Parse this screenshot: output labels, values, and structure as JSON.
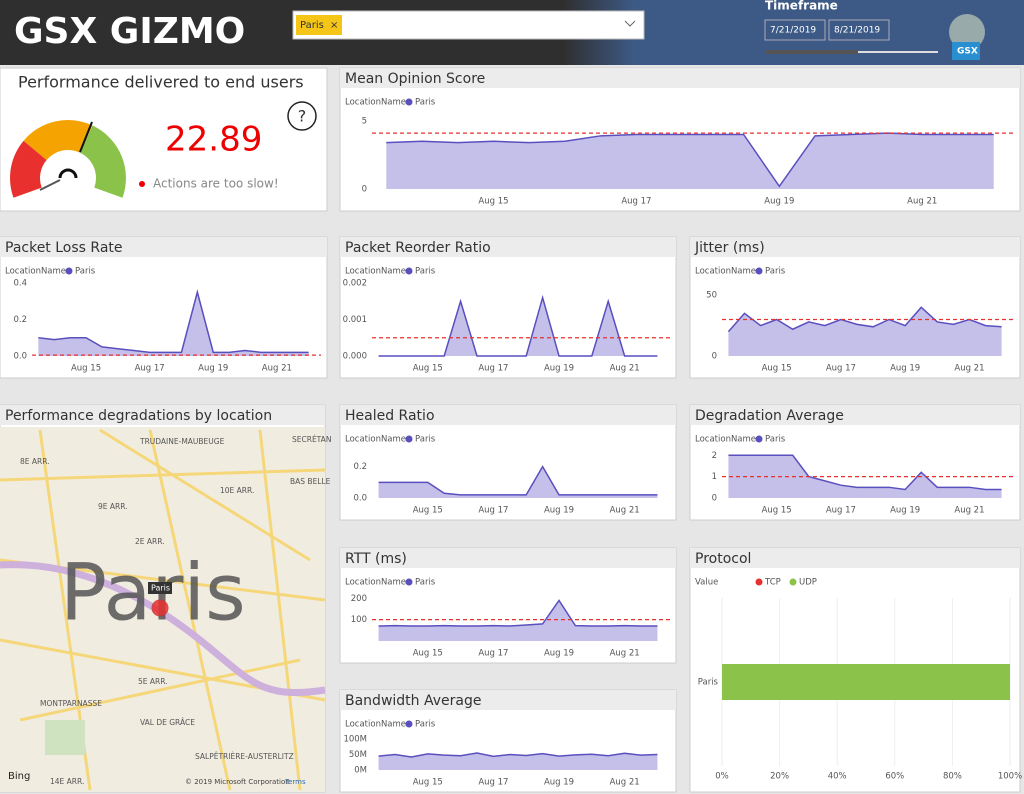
{
  "header": {
    "logo": "GSX GIZMO",
    "slicer_value": "Paris",
    "timeframe_label": "Timeframe",
    "date_from": "7/21/2019",
    "date_to": "8/21/2019",
    "badge": "GSX"
  },
  "performance": {
    "title": "Performance delivered to end users",
    "value": "22.89",
    "status": "Actions are too slow!",
    "help": "?"
  },
  "time_axis": {
    "x": [
      13.5,
      14,
      14.5,
      15,
      15.5,
      16,
      16.5,
      17,
      17.5,
      18,
      18.5,
      19,
      19.5,
      20,
      20.5,
      21,
      21.5,
      22
    ],
    "xlim": [
      13.3,
      22.2
    ],
    "xticks": [
      {
        "value": 15,
        "label": "Aug 15"
      },
      {
        "value": 17,
        "label": "Aug 17"
      },
      {
        "value": 19,
        "label": "Aug 19"
      },
      {
        "value": 21,
        "label": "Aug 21"
      }
    ]
  },
  "panels": {
    "mos": {
      "type": "area",
      "title": "Mean Opinion Score",
      "legend_title": "LocationName",
      "series_name": "Paris",
      "color": "#5a4fbf",
      "ylim": [
        0,
        5.5
      ],
      "yticks": [
        0,
        5
      ],
      "reference": 4.1,
      "values": [
        3.4,
        3.5,
        3.4,
        3.5,
        3.4,
        3.5,
        3.9,
        4.0,
        4.0,
        4.0,
        4.0,
        0.2,
        3.9,
        4.0,
        4.1,
        4.0,
        4.0,
        4.0
      ]
    },
    "packet_loss": {
      "type": "area",
      "title": "Packet Loss Rate",
      "legend_title": "LocationName",
      "series_name": "Paris",
      "color": "#5a4fbf",
      "ylim": [
        0,
        0.4
      ],
      "yticks": [
        {
          "value": 0,
          "label": "0.0"
        },
        0.2,
        0.4
      ],
      "reference": 0.005,
      "values": [
        0.1,
        0.09,
        0.1,
        0.1,
        0.05,
        0.04,
        0.03,
        0.02,
        0.02,
        0.02,
        0.35,
        0.02,
        0.02,
        0.03,
        0.02,
        0.02,
        0.02,
        0.02
      ]
    },
    "reorder": {
      "type": "area",
      "title": "Packet Reorder Ratio",
      "legend_title": "LocationName",
      "series_name": "Paris",
      "color": "#5a4fbf",
      "ylim": [
        0,
        0.002
      ],
      "yticks": [
        {
          "value": 0,
          "label": "0.000"
        },
        0.001,
        0.002
      ],
      "reference": 0.0005,
      "values": [
        0,
        0,
        0,
        0,
        0,
        0.0015,
        0,
        0,
        0,
        0,
        0.0016,
        0,
        0,
        0,
        0.0015,
        0,
        0,
        0
      ]
    },
    "jitter": {
      "type": "area",
      "title": "Jitter (ms)",
      "legend_title": "LocationName",
      "series_name": "Paris",
      "color": "#5a4fbf",
      "ylim": [
        0,
        60
      ],
      "yticks": [
        0,
        50
      ],
      "reference": 30,
      "values": [
        20,
        35,
        25,
        30,
        22,
        28,
        25,
        30,
        26,
        24,
        30,
        25,
        40,
        28,
        26,
        30,
        25,
        24
      ]
    },
    "healed": {
      "type": "area",
      "title": "Healed Ratio",
      "legend_title": "LocationName",
      "series_name": "Paris",
      "color": "#5a4fbf",
      "ylim": [
        0,
        0.3
      ],
      "yticks": [
        {
          "value": 0,
          "label": "0.0"
        },
        0.2
      ],
      "values": [
        0.1,
        0.1,
        0.1,
        0.1,
        0.03,
        0.02,
        0.02,
        0.02,
        0.02,
        0.02,
        0.2,
        0.02,
        0.02,
        0.02,
        0.02,
        0.02,
        0.02,
        0.02
      ]
    },
    "degradation": {
      "type": "area",
      "title": "Degradation Average",
      "legend_title": "LocationName",
      "series_name": "Paris",
      "color": "#5a4fbf",
      "ylim": [
        0,
        2.2
      ],
      "yticks": [
        0,
        1,
        2
      ],
      "reference": 1,
      "values": [
        2,
        2,
        2,
        2,
        2,
        1,
        0.8,
        0.6,
        0.5,
        0.5,
        0.5,
        0.4,
        1.2,
        0.5,
        0.5,
        0.5,
        0.4,
        0.4
      ]
    },
    "rtt": {
      "type": "area",
      "title": "RTT (ms)",
      "legend_title": "LocationName",
      "series_name": "Paris",
      "color": "#5a4fbf",
      "ylim": [
        0,
        220
      ],
      "yticks": [
        100,
        200
      ],
      "reference": 100,
      "values": [
        70,
        72,
        70,
        70,
        72,
        70,
        70,
        72,
        70,
        75,
        80,
        190,
        72,
        70,
        70,
        72,
        70,
        70
      ]
    },
    "bandwidth": {
      "type": "area",
      "title": "Bandwidth Average",
      "legend_title": "LocationName",
      "series_name": "Paris",
      "color": "#5a4fbf",
      "ylim": [
        0,
        110000000
      ],
      "yticks": [
        {
          "value": 0,
          "label": "0M"
        },
        {
          "value": 50000000,
          "label": "50M"
        },
        {
          "value": 100000000,
          "label": "100M"
        }
      ],
      "values": [
        45000000,
        50000000,
        42000000,
        52000000,
        48000000,
        46000000,
        55000000,
        44000000,
        50000000,
        47000000,
        53000000,
        45000000,
        49000000,
        51000000,
        46000000,
        54000000,
        48000000,
        50000000
      ]
    }
  },
  "protocol": {
    "type": "bar",
    "title": "Protocol",
    "legend_title": "Value",
    "categories": [
      "Paris"
    ],
    "series": [
      {
        "name": "TCP",
        "color": "#e8312f",
        "values": [
          0
        ]
      },
      {
        "name": "UDP",
        "color": "#8bc34a",
        "values": [
          100
        ]
      }
    ],
    "xlim": [
      0,
      100
    ],
    "xticks": [
      {
        "value": 0,
        "label": "0%"
      },
      {
        "value": 20,
        "label": "20%"
      },
      {
        "value": 40,
        "label": "40%"
      },
      {
        "value": 60,
        "label": "60%"
      },
      {
        "value": 80,
        "label": "80%"
      },
      {
        "value": 100,
        "label": "100%"
      }
    ]
  },
  "map": {
    "title": "Performance degradations by location",
    "big_label": "Paris",
    "marker_label": "Paris",
    "labels": [
      "TRUDAINE-MAUBEUGE",
      "SECRÉTAN",
      "8E ARR.",
      "BAS BELLE",
      "10E ARR.",
      "9E ARR.",
      "2E ARR.",
      "5E ARR.",
      "MONTPARNASSE",
      "VAL DE GRÂCE",
      "14E ARR.",
      "SALPÊTRIÈRE-AUSTERLITZ"
    ],
    "provider": "Bing",
    "copyright": "© 2019 Microsoft Corporation",
    "terms": "Terms"
  }
}
